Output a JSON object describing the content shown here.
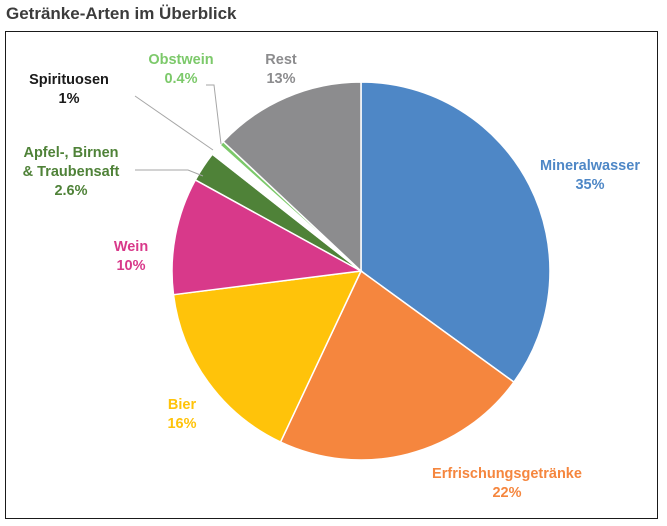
{
  "title": "Getränke-Arten im Überblick",
  "chart_data": {
    "type": "pie",
    "start_angle_deg": 0,
    "direction": "clockwise",
    "slices": [
      {
        "name_lines": [
          "Mineralwasser"
        ],
        "value": 35,
        "label": "35%",
        "color": "#4E87C6",
        "label_color": "#4E87C6"
      },
      {
        "name_lines": [
          "Erfrischungsgetränke"
        ],
        "value": 22,
        "label": "22%",
        "color": "#F5863E",
        "label_color": "#F5863E"
      },
      {
        "name_lines": [
          "Bier"
        ],
        "value": 16,
        "label": "16%",
        "color": "#FFC30A",
        "label_color": "#FFC30A"
      },
      {
        "name_lines": [
          "Wein"
        ],
        "value": 10,
        "label": "10%",
        "color": "#D8398A",
        "label_color": "#D8398A"
      },
      {
        "name_lines": [
          "Apfel-, Birnen",
          "& Traubensaft"
        ],
        "value": 2.6,
        "label": "2.6%",
        "color": "#4F8238",
        "label_color": "#4F8238"
      },
      {
        "name_lines": [
          "Spirituosen"
        ],
        "value": 1,
        "label": "1%",
        "color": "#FFFFFF",
        "label_color": "#1A1A1A"
      },
      {
        "name_lines": [
          "Obstwein"
        ],
        "value": 0.4,
        "label": "0.4%",
        "color": "#7CC96A",
        "label_color": "#7CC96A"
      },
      {
        "name_lines": [
          "Rest"
        ],
        "value": 13,
        "label": "13%",
        "color": "#8C8C8E",
        "label_color": "#8C8C8E"
      }
    ]
  }
}
